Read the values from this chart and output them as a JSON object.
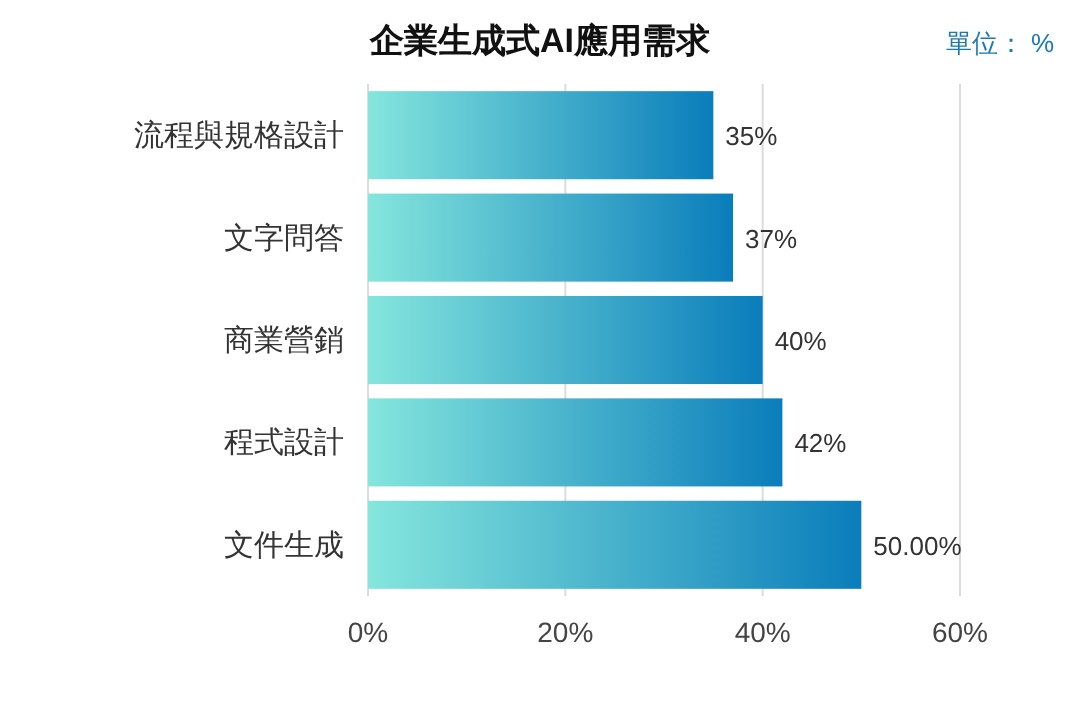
{
  "chart_data": {
    "type": "bar",
    "orientation": "horizontal",
    "title": "企業生成式AI應用需求",
    "annotations": [
      "單位： %"
    ],
    "categories": [
      "流程與規格設計",
      "文字問答",
      "商業營銷",
      "程式設計",
      "文件生成"
    ],
    "values": [
      35,
      37,
      40,
      42,
      50
    ],
    "value_labels": [
      "35%",
      "37%",
      "40%",
      "42%",
      "50.00%"
    ],
    "color": "#0a7dbb",
    "xlim": [
      0,
      60
    ],
    "xticks": [
      {
        "value": 0,
        "label": "0%"
      },
      {
        "value": 20,
        "label": "20%"
      },
      {
        "value": 40,
        "label": "40%"
      },
      {
        "value": 60,
        "label": "60%"
      }
    ],
    "grid": "x"
  }
}
